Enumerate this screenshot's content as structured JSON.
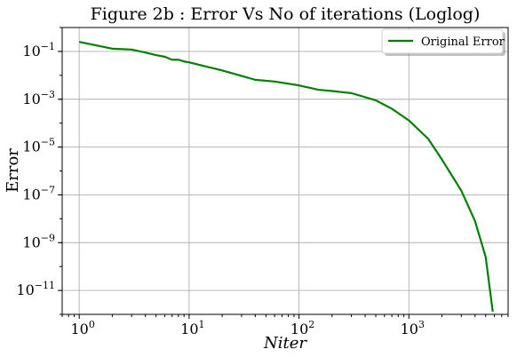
{
  "chart_data": {
    "type": "line",
    "title": "Figure 2b : Error Vs No of iterations (Loglog)",
    "xlabel": "Niter",
    "ylabel": "Error",
    "xscale": "log",
    "yscale": "log",
    "xlim": [
      0.7,
      8000
    ],
    "ylim": [
      1e-12,
      1
    ],
    "grid": true,
    "legend_position": "top-right",
    "x_ticks": [
      {
        "base": "10",
        "exp": "0",
        "value": 1
      },
      {
        "base": "10",
        "exp": "1",
        "value": 10
      },
      {
        "base": "10",
        "exp": "2",
        "value": 100
      },
      {
        "base": "10",
        "exp": "3",
        "value": 1000
      }
    ],
    "y_ticks": [
      {
        "base": "10",
        "exp": "−1",
        "value": 0.1
      },
      {
        "base": "10",
        "exp": "−3",
        "value": 0.001
      },
      {
        "base": "10",
        "exp": "−5",
        "value": 1e-05
      },
      {
        "base": "10",
        "exp": "−7",
        "value": 1e-07
      },
      {
        "base": "10",
        "exp": "−9",
        "value": 1e-09
      },
      {
        "base": "10",
        "exp": "−11",
        "value": 1e-11
      }
    ],
    "series": [
      {
        "name": "Original Error",
        "color": "#008000",
        "x": [
          1,
          2,
          3,
          4,
          5,
          6,
          7,
          8,
          9,
          10,
          15,
          20,
          30,
          40,
          60,
          100,
          150,
          200,
          300,
          500,
          700,
          1000,
          1500,
          2000,
          3000,
          4000,
          5000,
          5800
        ],
        "y": [
          0.25,
          0.13,
          0.12,
          0.09,
          0.07,
          0.06,
          0.045,
          0.045,
          0.038,
          0.035,
          0.022,
          0.016,
          0.0095,
          0.0065,
          0.0055,
          0.0038,
          0.0025,
          0.0022,
          0.0018,
          0.0009,
          0.0004,
          0.00013,
          2.2e-05,
          3e-06,
          1.5e-07,
          8e-09,
          2.5e-10,
          1.3e-12
        ]
      }
    ]
  }
}
